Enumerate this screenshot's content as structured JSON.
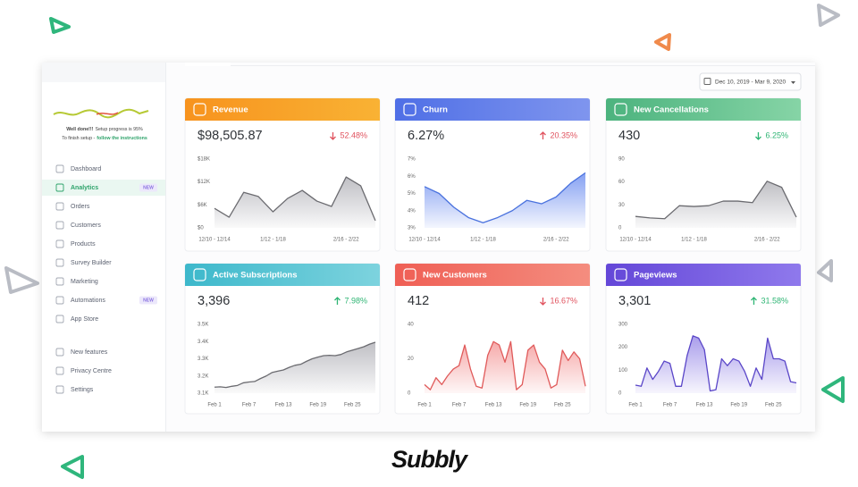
{
  "sidebar": {
    "setup_title": "Well done!!!",
    "setup_progress": "Setup progress is 95%",
    "setup_prompt": "To finish setup -",
    "setup_link": "follow the instructions",
    "nav": [
      {
        "label": "Dashboard"
      },
      {
        "label": "Analytics",
        "badge": "NEW",
        "active": true
      },
      {
        "label": "Orders"
      },
      {
        "label": "Customers"
      },
      {
        "label": "Products"
      },
      {
        "label": "Survey Builder"
      },
      {
        "label": "Marketing"
      },
      {
        "label": "Automations",
        "badge": "NEW"
      },
      {
        "label": "App Store"
      }
    ],
    "footer_nav": [
      {
        "label": "New features"
      },
      {
        "label": "Privacy Centre"
      },
      {
        "label": "Settings"
      }
    ]
  },
  "date_range": "Dec 10, 2019 - Mar 9, 2020",
  "brand": "Subbly",
  "cards": [
    {
      "title": "Revenue",
      "value": "$98,505.87",
      "change": "52.48%",
      "trend": "down",
      "change_color": "#e0525e",
      "color": [
        "#f7931e",
        "#f9b234"
      ],
      "chart": {
        "type": "area",
        "line_color": "#6b6b70",
        "fill_color": "#b4b4ba",
        "categories": [
          "12/10 - 12/14",
          null,
          null,
          null,
          "1/12 - 1/18",
          null,
          null,
          null,
          null,
          "2/16 - 2/22",
          null,
          null
        ],
        "values": [
          5100,
          2800,
          9300,
          8200,
          4200,
          7700,
          9800,
          7000,
          5600,
          13300,
          11000,
          1900
        ],
        "ylim": [
          0,
          18000
        ],
        "yticks": [
          {
            "value": 0,
            "label": "$0"
          },
          {
            "value": 6000,
            "label": "$6K"
          },
          {
            "value": 12000,
            "label": "$12K"
          },
          {
            "value": 18000,
            "label": "$18K"
          }
        ]
      }
    },
    {
      "title": "Churn",
      "value": "6.27%",
      "change": "20.35%",
      "trend": "up",
      "change_color": "#e0525e",
      "color": [
        "#4f6fe6",
        "#7f95ee"
      ],
      "chart": {
        "type": "area",
        "line_color": "#4a72de",
        "fill_color": "#6f8ff0",
        "categories": [
          "12/10 - 12/14",
          null,
          null,
          null,
          "1/12 - 1/18",
          null,
          null,
          null,
          null,
          "2/16 - 2/22",
          null,
          null
        ],
        "values": [
          5.4,
          5.0,
          4.2,
          3.6,
          3.3,
          3.6,
          4.0,
          4.6,
          4.4,
          4.8,
          5.6,
          6.2
        ],
        "ylim": [
          3,
          7
        ],
        "yticks": [
          {
            "value": 3,
            "label": "3%"
          },
          {
            "value": 4,
            "label": "4%"
          },
          {
            "value": 5,
            "label": "5%"
          },
          {
            "value": 6,
            "label": "6%"
          },
          {
            "value": 7,
            "label": "7%"
          }
        ]
      }
    },
    {
      "title": "New Cancellations",
      "value": "430",
      "change": "6.25%",
      "trend": "down",
      "change_color": "#2fb574",
      "color": [
        "#4cb37e",
        "#86d4a6"
      ],
      "chart": {
        "type": "area",
        "line_color": "#6b6b70",
        "fill_color": "#b4b4ba",
        "categories": [
          "12/10 - 12/14",
          null,
          null,
          null,
          "1/12 - 1/18",
          null,
          null,
          null,
          null,
          "2/16 - 2/22",
          null,
          null
        ],
        "values": [
          15,
          13,
          12,
          29,
          28,
          29,
          35,
          35,
          33,
          61,
          53,
          14
        ],
        "ylim": [
          0,
          90
        ],
        "yticks": [
          0,
          30,
          60,
          90
        ]
      }
    },
    {
      "title": "Active Subscriptions",
      "value": "3,396",
      "change": "7.98%",
      "trend": "up",
      "change_color": "#2fb574",
      "color": [
        "#3db8cb",
        "#7dd3de"
      ],
      "chart": {
        "type": "area",
        "line_color": "#6b6b70",
        "fill_color": "#b4b4ba",
        "categories": [
          "Feb 1",
          null,
          null,
          null,
          null,
          null,
          "Feb 7",
          null,
          null,
          null,
          null,
          null,
          "Feb 13",
          null,
          null,
          null,
          null,
          null,
          "Feb 19",
          null,
          null,
          null,
          null,
          null,
          "Feb 25",
          null,
          null,
          null,
          null
        ],
        "values": [
          3135,
          3137,
          3133,
          3140,
          3145,
          3160,
          3165,
          3168,
          3185,
          3200,
          3220,
          3228,
          3235,
          3250,
          3262,
          3268,
          3285,
          3300,
          3310,
          3318,
          3320,
          3318,
          3325,
          3340,
          3350,
          3360,
          3370,
          3385,
          3396
        ],
        "ylim": [
          3100,
          3500
        ],
        "yticks": [
          {
            "value": 3100,
            "label": "3.1K"
          },
          {
            "value": 3200,
            "label": "3.2K"
          },
          {
            "value": 3300,
            "label": "3.3K"
          },
          {
            "value": 3400,
            "label": "3.4K"
          },
          {
            "value": 3500,
            "label": "3.5K"
          }
        ]
      }
    },
    {
      "title": "New Customers",
      "value": "412",
      "change": "16.67%",
      "trend": "down",
      "change_color": "#e0525e",
      "color": [
        "#ef5f55",
        "#f48d7f"
      ],
      "chart": {
        "type": "area",
        "line_color": "#e05a5a",
        "fill_color": "#f49a9a",
        "categories": [
          "Feb 1",
          null,
          null,
          null,
          null,
          null,
          "Feb 7",
          null,
          null,
          null,
          null,
          null,
          "Feb 13",
          null,
          null,
          null,
          null,
          null,
          "Feb 19",
          null,
          null,
          null,
          null,
          null,
          "Feb 25",
          null,
          null,
          null,
          null
        ],
        "values": [
          5,
          2,
          9,
          5,
          10,
          14,
          16,
          28,
          14,
          4,
          3,
          22,
          30,
          28,
          18,
          30,
          2,
          5,
          25,
          28,
          18,
          14,
          3,
          5,
          25,
          19,
          24,
          20,
          4
        ],
        "ylim": [
          0,
          40
        ],
        "yticks": [
          0,
          20,
          40
        ]
      }
    },
    {
      "title": "Pageviews",
      "value": "3,301",
      "change": "31.58%",
      "trend": "up",
      "change_color": "#2fb574",
      "color": [
        "#6447d8",
        "#8f79ec"
      ],
      "chart": {
        "type": "area",
        "line_color": "#5a46c8",
        "fill_color": "#9a8ce8",
        "categories": [
          "Feb 1",
          null,
          null,
          null,
          null,
          null,
          "Feb 7",
          null,
          null,
          null,
          null,
          null,
          "Feb 13",
          null,
          null,
          null,
          null,
          null,
          "Feb 19",
          null,
          null,
          null,
          null,
          null,
          "Feb 25",
          null,
          null,
          null,
          null
        ],
        "values": [
          35,
          30,
          110,
          60,
          95,
          140,
          130,
          30,
          30,
          165,
          250,
          240,
          190,
          10,
          15,
          150,
          120,
          150,
          140,
          95,
          30,
          110,
          60,
          240,
          150,
          150,
          140,
          50,
          45
        ],
        "ylim": [
          0,
          300
        ],
        "yticks": [
          0,
          100,
          200,
          300
        ]
      }
    }
  ]
}
